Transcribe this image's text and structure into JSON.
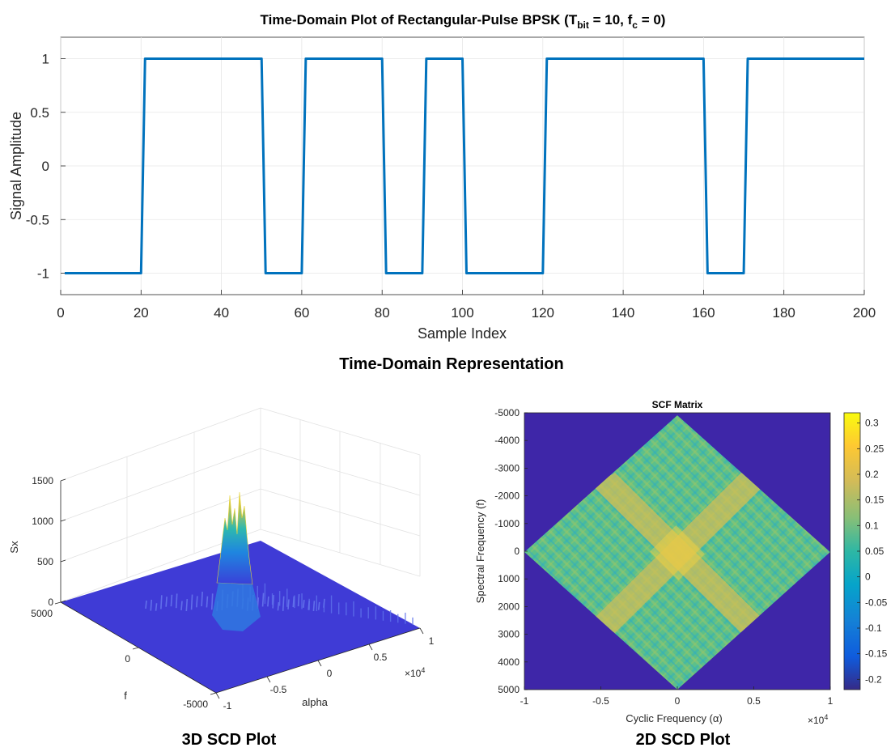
{
  "captions": {
    "time_domain": "Time-Domain Representation",
    "scd_3d": "3D SCD Plot",
    "scd_2d": "2D SCD Plot"
  },
  "chart_data": [
    {
      "type": "line",
      "title_prefix": "Time-Domain Plot of Rectangular-Pulse BPSK (T",
      "title_sub1": "bit",
      "title_mid": " = 10, f",
      "title_sub2": "c",
      "title_suffix": " = 0)",
      "xlabel": "Sample Index",
      "ylabel": "Signal Amplitude",
      "xlim": [
        0,
        200
      ],
      "ylim": [
        -1.2,
        1.2
      ],
      "xticks": [
        "0",
        "20",
        "40",
        "60",
        "80",
        "100",
        "120",
        "140",
        "160",
        "180",
        "200"
      ],
      "yticks": [
        "-1",
        "-0.5",
        "0",
        "0.5",
        "1"
      ],
      "bit_length": 10,
      "bits": [
        -1,
        -1,
        1,
        1,
        1,
        -1,
        1,
        1,
        -1,
        1,
        -1,
        -1,
        1,
        1,
        1,
        1,
        -1,
        1,
        1,
        1
      ],
      "color": "#0072BD"
    },
    {
      "type": "surface3d",
      "xlabel": "alpha",
      "ylabel": "f",
      "zlabel": "Sx",
      "zticks": [
        "0",
        "500",
        "1000",
        "1500"
      ],
      "fticks": [
        "5000",
        "0",
        "-5000"
      ],
      "alphaticks": [
        "-1",
        "-0.5",
        "0",
        "0.5",
        "1"
      ],
      "alpha_exponent_base": "×10",
      "alpha_exponent": "4",
      "peak_value": 1300
    },
    {
      "type": "heatmap",
      "title": "SCF Matrix",
      "xlabel": "Cyclic Frequency (α)",
      "ylabel": "Spectral Frequency (f)",
      "xticks": [
        "-1",
        "-0.5",
        "0",
        "0.5",
        "1"
      ],
      "x_exponent_base": "×10",
      "x_exponent": "4",
      "yticks": [
        "-5000",
        "-4000",
        "-3000",
        "-2000",
        "-1000",
        "0",
        "1000",
        "2000",
        "3000",
        "4000",
        "5000"
      ],
      "colorbar_ticks": [
        "0.3",
        "0.25",
        "0.2",
        "0.15",
        "0.1",
        "0.05",
        "0",
        "-0.05",
        "-0.1",
        "-0.15",
        "-0.2"
      ],
      "clim": [
        -0.22,
        0.32
      ],
      "background_color": "#3E26A8"
    }
  ]
}
